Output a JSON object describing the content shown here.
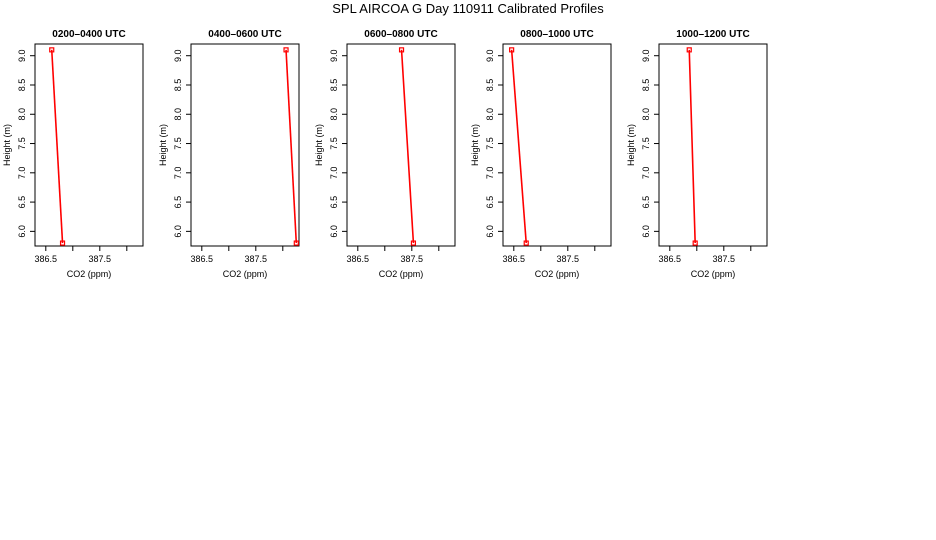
{
  "figure": {
    "title": "SPL AIRCOA G  Day 110911  Calibrated Profiles"
  },
  "colors": {
    "series": "#ff0000",
    "axes": "#000000",
    "background": "#ffffff"
  },
  "chart_data": [
    {
      "type": "line",
      "title": "0200–0400 UTC",
      "xlabel": "CO2 (ppm)",
      "ylabel": "Height (m)",
      "xlim": [
        386.3,
        388.3
      ],
      "ylim": [
        5.75,
        9.2
      ],
      "xticks": [
        386.5,
        387.0,
        387.5,
        388.0
      ],
      "xtick_labels": [
        "386.5",
        "",
        "387.5",
        ""
      ],
      "yticks": [
        6.0,
        6.5,
        7.0,
        7.5,
        8.0,
        8.5,
        9.0
      ],
      "ytick_labels": [
        "6.0",
        "6.5",
        "7.0",
        "7.5",
        "8.0",
        "8.5",
        "9.0"
      ],
      "series": [
        {
          "x": [
            386.61,
            386.81
          ],
          "y": [
            9.1,
            5.8
          ],
          "color": "#ff0000",
          "marker": "square"
        }
      ]
    },
    {
      "type": "line",
      "title": "0400–0600 UTC",
      "xlabel": "CO2 (ppm)",
      "ylabel": "Height (m)",
      "xlim": [
        386.3,
        388.3
      ],
      "ylim": [
        5.75,
        9.2
      ],
      "xticks": [
        386.5,
        387.0,
        387.5,
        388.0
      ],
      "xtick_labels": [
        "386.5",
        "",
        "387.5",
        ""
      ],
      "yticks": [
        6.0,
        6.5,
        7.0,
        7.5,
        8.0,
        8.5,
        9.0
      ],
      "ytick_labels": [
        "6.0",
        "6.5",
        "7.0",
        "7.5",
        "8.0",
        "8.5",
        "9.0"
      ],
      "series": [
        {
          "x": [
            388.06,
            388.25
          ],
          "y": [
            9.1,
            5.8
          ],
          "color": "#ff0000",
          "marker": "square"
        }
      ]
    },
    {
      "type": "line",
      "title": "0600–0800 UTC",
      "xlabel": "CO2 (ppm)",
      "ylabel": "Height (m)",
      "xlim": [
        386.3,
        388.3
      ],
      "ylim": [
        5.75,
        9.2
      ],
      "xticks": [
        386.5,
        387.0,
        387.5,
        388.0
      ],
      "xtick_labels": [
        "386.5",
        "",
        "387.5",
        ""
      ],
      "yticks": [
        6.0,
        6.5,
        7.0,
        7.5,
        8.0,
        8.5,
        9.0
      ],
      "ytick_labels": [
        "6.0",
        "6.5",
        "7.0",
        "7.5",
        "8.0",
        "8.5",
        "9.0"
      ],
      "series": [
        {
          "x": [
            387.31,
            387.53
          ],
          "y": [
            9.1,
            5.8
          ],
          "color": "#ff0000",
          "marker": "square"
        }
      ]
    },
    {
      "type": "line",
      "title": "0800–1000 UTC",
      "xlabel": "CO2 (ppm)",
      "ylabel": "Height (m)",
      "xlim": [
        386.3,
        388.3
      ],
      "ylim": [
        5.75,
        9.2
      ],
      "xticks": [
        386.5,
        387.0,
        387.5,
        388.0
      ],
      "xtick_labels": [
        "386.5",
        "",
        "387.5",
        ""
      ],
      "yticks": [
        6.0,
        6.5,
        7.0,
        7.5,
        8.0,
        8.5,
        9.0
      ],
      "ytick_labels": [
        "6.0",
        "6.5",
        "7.0",
        "7.5",
        "8.0",
        "8.5",
        "9.0"
      ],
      "series": [
        {
          "x": [
            386.46,
            386.73
          ],
          "y": [
            9.1,
            5.8
          ],
          "color": "#ff0000",
          "marker": "square"
        }
      ]
    },
    {
      "type": "line",
      "title": "1000–1200 UTC",
      "xlabel": "CO2 (ppm)",
      "ylabel": "Height (m)",
      "xlim": [
        386.3,
        388.3
      ],
      "ylim": [
        5.75,
        9.2
      ],
      "xticks": [
        386.5,
        387.0,
        387.5,
        388.0
      ],
      "xtick_labels": [
        "386.5",
        "",
        "387.5",
        ""
      ],
      "yticks": [
        6.0,
        6.5,
        7.0,
        7.5,
        8.0,
        8.5,
        9.0
      ],
      "ytick_labels": [
        "6.0",
        "6.5",
        "7.0",
        "7.5",
        "8.0",
        "8.5",
        "9.0"
      ],
      "series": [
        {
          "x": [
            386.86,
            386.97
          ],
          "y": [
            9.1,
            5.8
          ],
          "color": "#ff0000",
          "marker": "square"
        }
      ]
    }
  ]
}
